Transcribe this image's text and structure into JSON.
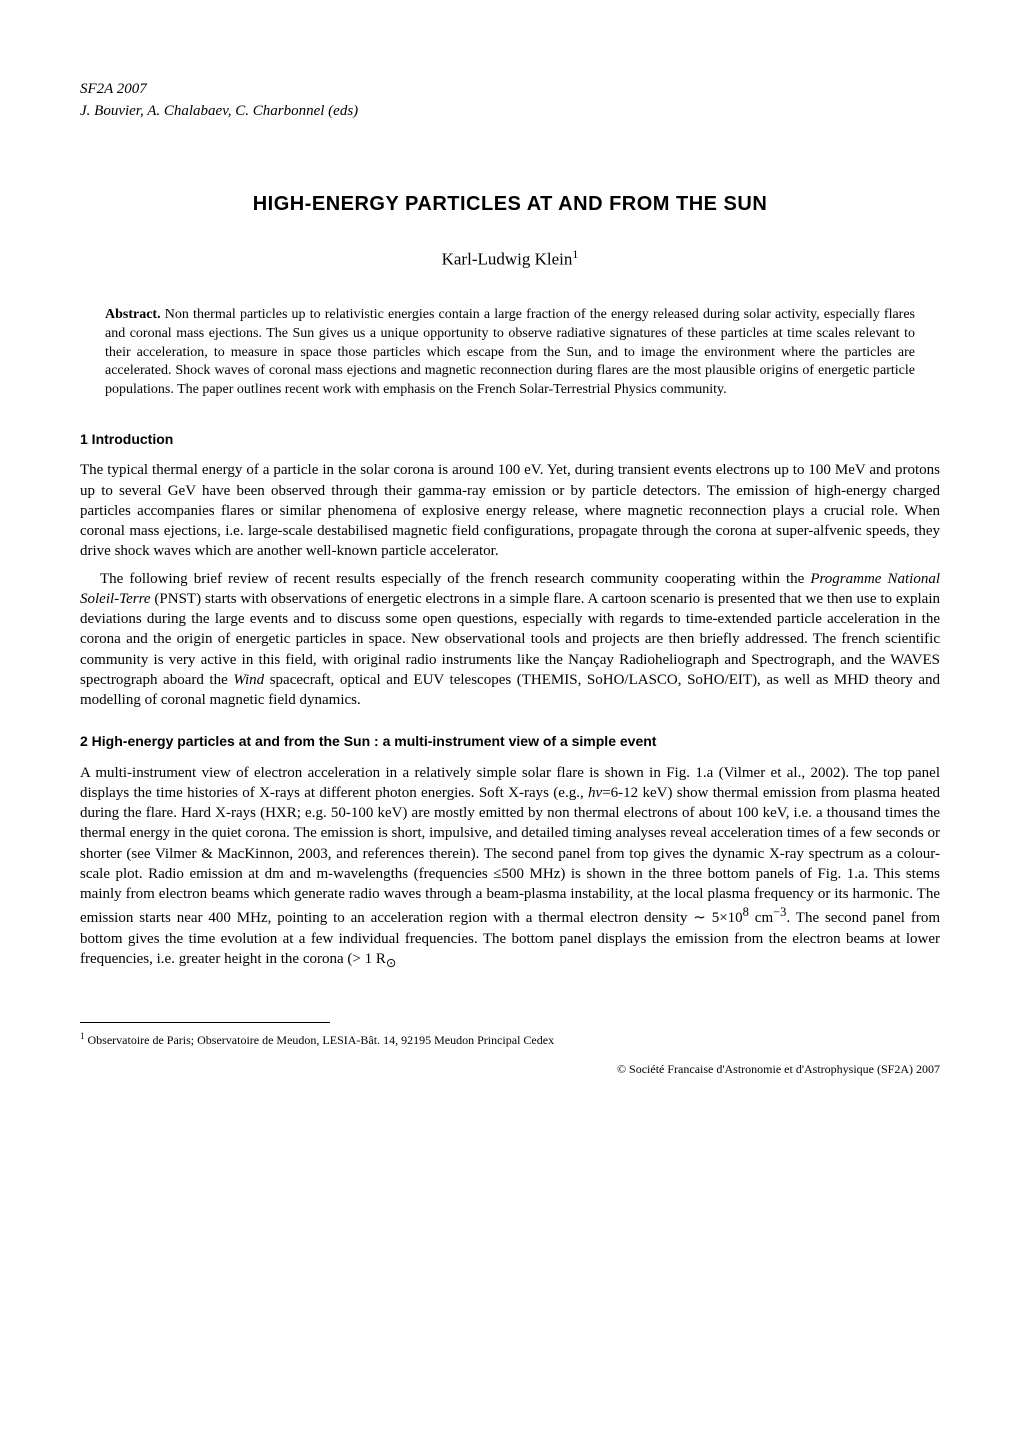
{
  "header": {
    "venue": "SF2A 2007",
    "editors": "J. Bouvier, A. Chalabaev, C. Charbonnel (eds)"
  },
  "title": "HIGH-ENERGY PARTICLES AT AND FROM THE SUN",
  "author": {
    "name": "Karl-Ludwig Klein",
    "affil_mark": "1"
  },
  "abstract": {
    "label": "Abstract.",
    "text": "Non thermal particles up to relativistic energies contain a large fraction of the energy released during solar activity, especially flares and coronal mass ejections. The Sun gives us a unique opportunity to observe radiative signatures of these particles at time scales relevant to their acceleration, to measure in space those particles which escape from the Sun, and to image the environment where the particles are accelerated. Shock waves of coronal mass ejections and magnetic reconnection during flares are the most plausible origins of energetic particle populations. The paper outlines recent work with emphasis on the French Solar-Terrestrial Physics community."
  },
  "sections": {
    "s1": {
      "heading": "1   Introduction",
      "p1": "The typical thermal energy of a particle in the solar corona is around 100 eV. Yet, during transient events electrons up to 100 MeV and protons up to several GeV have been observed through their gamma-ray emission or by particle detectors. The emission of high-energy charged particles accompanies flares or similar phenomena of explosive energy release, where magnetic reconnection plays a crucial role. When coronal mass ejections, i.e. large-scale destabilised magnetic field configurations, propagate through the corona at super-alfvenic speeds, they drive shock waves which are another well-known particle accelerator.",
      "p2a": "The following brief review of recent results especially of the french research community cooperating within the ",
      "p2b": "Programme National Soleil-Terre",
      "p2c": " (PNST) starts with observations of energetic electrons in a simple flare. A cartoon scenario is presented that we then use to explain deviations during the large events and to discuss some open questions, especially with regards to time-extended particle acceleration in the corona and the origin of energetic particles in space. New observational tools and projects are then briefly addressed. The french scientific community is very active in this field, with original radio instruments like the Nançay Radioheliograph and Spectrograph, and the WAVES spectrograph aboard the ",
      "p2d": "Wind",
      "p2e": " spacecraft, optical and EUV telescopes (THEMIS, SoHO/LASCO, SoHO/EIT), as well as MHD theory and modelling of coronal magnetic field dynamics."
    },
    "s2": {
      "heading": "2   High-energy particles at and from the Sun : a multi-instrument view of a simple event",
      "p1a": "A multi-instrument view of electron acceleration in a relatively simple solar flare is shown in Fig. 1.a (Vilmer et al., 2002). The top panel displays the time histories of X-rays at different photon energies. Soft X-rays (e.g., ",
      "p1b": "hν",
      "p1c": "=6-12 keV) show thermal emission from plasma heated during the flare. Hard X-rays (HXR; e.g. 50-100 keV) are mostly emitted by non thermal electrons of about 100 keV, i.e. a thousand times the thermal energy in the quiet corona. The emission is short, impulsive, and detailed timing analyses reveal acceleration times of a few seconds or shorter (see Vilmer & MacKinnon, 2003, and references therein). The second panel from top gives the dynamic X-ray spectrum as a colour-scale plot. Radio emission at dm and m-wavelengths (frequencies ≤500 MHz) is shown in the three bottom panels of Fig. 1.a. This stems mainly from electron beams which generate radio waves through a beam-plasma instability, at the local plasma frequency or its harmonic. The emission starts near 400 MHz, pointing to an acceleration region with a thermal electron density ∼ 5×10",
      "p1d": "8",
      "p1e": " cm",
      "p1f": "−3",
      "p1g": ". The second panel from bottom gives the time evolution at a few individual frequencies. The bottom panel displays the emission from the electron beams at lower frequencies, i.e. greater height in the corona (> 1 R",
      "p1h": "⊙"
    }
  },
  "footnote": {
    "mark": "1",
    "text": " Observatoire de Paris; Observatoire de Meudon, LESIA-Bât. 14, 92195 Meudon Principal Cedex"
  },
  "copyright": "© Société Francaise d'Astronomie et d'Astrophysique (SF2A) 2007"
}
